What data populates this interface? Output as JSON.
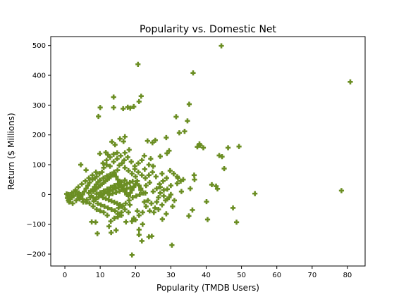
{
  "chart_data": {
    "type": "scatter",
    "title": "Popularity vs. Domestic Net",
    "xlabel": "Popularity (TMDB Users)",
    "ylabel": "Return ($ Millions)",
    "xlim": [
      -4,
      85
    ],
    "ylim": [
      -240,
      530
    ],
    "xticks": [
      0,
      10,
      20,
      30,
      40,
      50,
      60,
      70,
      80
    ],
    "yticks": [
      -200,
      -100,
      0,
      100,
      200,
      300,
      400,
      500
    ],
    "grid": false,
    "marker": "plus",
    "series": [
      {
        "color": "#6b8e23",
        "points": [
          [
            44.3,
            499
          ],
          [
            20.7,
            437
          ],
          [
            36.3,
            408
          ],
          [
            80.8,
            378
          ],
          [
            13.8,
            327
          ],
          [
            21.6,
            330
          ],
          [
            21.0,
            312
          ],
          [
            35.2,
            303
          ],
          [
            10.0,
            292
          ],
          [
            13.8,
            292
          ],
          [
            17.8,
            293
          ],
          [
            18.5,
            290
          ],
          [
            19.5,
            295
          ],
          [
            16.5,
            288
          ],
          [
            9.5,
            262
          ],
          [
            31.5,
            261
          ],
          [
            34.7,
            247
          ],
          [
            33.9,
            212
          ],
          [
            32.4,
            207
          ],
          [
            28.7,
            191
          ],
          [
            25.6,
            182
          ],
          [
            24.8,
            174
          ],
          [
            23.4,
            180
          ],
          [
            17.0,
            194
          ],
          [
            15.6,
            187
          ],
          [
            16.6,
            178
          ],
          [
            13.3,
            177
          ],
          [
            14.2,
            167
          ],
          [
            38.3,
            165
          ],
          [
            39.2,
            157
          ],
          [
            37.5,
            160
          ],
          [
            38.1,
            170
          ],
          [
            49.3,
            161
          ],
          [
            46.2,
            157
          ],
          [
            43.7,
            131
          ],
          [
            44.5,
            127
          ],
          [
            45.1,
            87
          ],
          [
            36.6,
            65
          ],
          [
            36.7,
            50
          ],
          [
            29.5,
            147
          ],
          [
            28.9,
            138
          ],
          [
            27.0,
            128
          ],
          [
            18.2,
            150
          ],
          [
            17.0,
            140
          ],
          [
            11.6,
            141
          ],
          [
            12.2,
            133
          ],
          [
            9.9,
            137
          ],
          [
            4.5,
            100
          ],
          [
            6.0,
            82
          ],
          [
            22.6,
            85
          ],
          [
            25.0,
            95
          ],
          [
            27.5,
            70
          ],
          [
            32.0,
            55
          ],
          [
            33.5,
            50
          ],
          [
            41.6,
            33
          ],
          [
            42.8,
            28
          ],
          [
            53.8,
            3
          ],
          [
            78.3,
            13
          ],
          [
            43.2,
            19
          ],
          [
            47.6,
            -45
          ],
          [
            40.1,
            -24
          ],
          [
            40.4,
            -84
          ],
          [
            48.6,
            -93
          ],
          [
            35.1,
            -72
          ],
          [
            36.1,
            -52
          ],
          [
            30.3,
            -170
          ],
          [
            19.0,
            -203
          ],
          [
            21.8,
            -156
          ],
          [
            21.0,
            -135
          ],
          [
            23.8,
            -142
          ],
          [
            24.6,
            -140
          ],
          [
            27.6,
            -83
          ],
          [
            28.7,
            -65
          ],
          [
            30.5,
            -40
          ],
          [
            26.0,
            -25
          ],
          [
            25.2,
            -60
          ],
          [
            22.0,
            -100
          ],
          [
            21.0,
            -118
          ],
          [
            17.3,
            -92
          ],
          [
            14.5,
            -120
          ],
          [
            13.1,
            -128
          ],
          [
            12.5,
            -107
          ],
          [
            9.2,
            -131
          ],
          [
            8.7,
            -93
          ],
          [
            7.6,
            -92
          ],
          [
            15.0,
            -75
          ],
          [
            16.0,
            -70
          ],
          [
            19.5,
            -80
          ],
          [
            20.5,
            -55
          ],
          [
            18.4,
            -35
          ],
          [
            26.5,
            -10
          ],
          [
            28.0,
            -5
          ],
          [
            31.0,
            -20
          ],
          [
            33.0,
            10
          ],
          [
            35.5,
            20
          ],
          [
            31.8,
            37
          ],
          [
            30.0,
            30
          ],
          [
            29.0,
            18
          ],
          [
            27.0,
            25
          ],
          [
            24.0,
            40
          ],
          [
            23.0,
            30
          ],
          [
            21.5,
            15
          ],
          [
            22.8,
            5
          ],
          [
            20.0,
            60
          ],
          [
            19.0,
            70
          ],
          [
            18.0,
            80
          ],
          [
            17.0,
            90
          ],
          [
            16.2,
            105
          ],
          [
            15.4,
            98
          ],
          [
            14.8,
            120
          ],
          [
            13.8,
            110
          ],
          [
            12.8,
            95
          ],
          [
            11.8,
            100
          ],
          [
            11.0,
            90
          ],
          [
            10.5,
            75
          ],
          [
            9.8,
            70
          ],
          [
            9.0,
            60
          ],
          [
            8.5,
            55
          ],
          [
            7.8,
            50
          ],
          [
            7.0,
            40
          ],
          [
            6.5,
            30
          ],
          [
            6.0,
            20
          ],
          [
            5.5,
            10
          ],
          [
            5.0,
            0
          ],
          [
            4.5,
            -5
          ],
          [
            4.0,
            5
          ],
          [
            3.5,
            0
          ],
          [
            3.0,
            10
          ],
          [
            2.5,
            -5
          ],
          [
            2.0,
            -10
          ],
          [
            1.5,
            -15
          ],
          [
            1.0,
            -20
          ],
          [
            0.8,
            -5
          ],
          [
            0.5,
            2
          ],
          [
            0.7,
            -12
          ],
          [
            1.2,
            -25
          ],
          [
            1.8,
            -8
          ],
          [
            2.2,
            -30
          ],
          [
            3.2,
            -20
          ],
          [
            4.2,
            -15
          ],
          [
            5.2,
            -25
          ],
          [
            6.2,
            -18
          ],
          [
            7.2,
            -10
          ],
          [
            8.2,
            -22
          ],
          [
            9.3,
            -30
          ],
          [
            10.2,
            -35
          ],
          [
            11.2,
            -40
          ],
          [
            12.2,
            -45
          ],
          [
            13.2,
            -50
          ],
          [
            14.2,
            -55
          ],
          [
            15.2,
            -45
          ],
          [
            16.2,
            -40
          ],
          [
            17.2,
            -30
          ],
          [
            18.2,
            -20
          ],
          [
            19.2,
            -10
          ],
          [
            20.2,
            -5
          ],
          [
            21.2,
            0
          ],
          [
            22.2,
            5
          ],
          [
            8.0,
            10
          ],
          [
            8.5,
            15
          ],
          [
            9.0,
            20
          ],
          [
            9.5,
            25
          ],
          [
            10.0,
            30
          ],
          [
            10.5,
            35
          ],
          [
            11.0,
            40
          ],
          [
            11.5,
            45
          ],
          [
            12.0,
            50
          ],
          [
            12.5,
            55
          ],
          [
            13.0,
            60
          ],
          [
            13.5,
            65
          ],
          [
            14.0,
            70
          ],
          [
            14.5,
            60
          ],
          [
            15.0,
            50
          ],
          [
            15.5,
            40
          ],
          [
            16.0,
            30
          ],
          [
            16.5,
            20
          ],
          [
            17.0,
            10
          ],
          [
            17.5,
            0
          ],
          [
            18.0,
            -5
          ],
          [
            18.5,
            5
          ],
          [
            19.0,
            15
          ],
          [
            19.5,
            25
          ],
          [
            20.0,
            35
          ],
          [
            20.5,
            45
          ],
          [
            21.0,
            30
          ],
          [
            21.5,
            20
          ],
          [
            7.5,
            -5
          ],
          [
            8.0,
            -10
          ],
          [
            8.8,
            -15
          ],
          [
            9.6,
            -8
          ],
          [
            10.4,
            -2
          ],
          [
            11.2,
            4
          ],
          [
            12.0,
            8
          ],
          [
            12.8,
            12
          ],
          [
            13.6,
            16
          ],
          [
            14.4,
            20
          ],
          [
            15.2,
            24
          ],
          [
            16.0,
            28
          ],
          [
            16.8,
            32
          ],
          [
            17.6,
            36
          ],
          [
            18.4,
            40
          ],
          [
            19.2,
            44
          ],
          [
            10.8,
            -10
          ],
          [
            11.6,
            -14
          ],
          [
            12.4,
            -18
          ],
          [
            13.2,
            -22
          ],
          [
            14.0,
            -26
          ],
          [
            14.8,
            -30
          ],
          [
            15.6,
            -34
          ],
          [
            16.4,
            -38
          ],
          [
            9.0,
            2
          ],
          [
            10.0,
            6
          ],
          [
            11.0,
            12
          ],
          [
            12.0,
            18
          ],
          [
            13.0,
            24
          ],
          [
            14.0,
            30
          ],
          [
            15.0,
            36
          ],
          [
            16.0,
            42
          ],
          [
            17.0,
            48
          ],
          [
            12.5,
            -2
          ],
          [
            13.5,
            3
          ],
          [
            14.5,
            7
          ],
          [
            15.5,
            11
          ],
          [
            16.5,
            15
          ],
          [
            17.5,
            19
          ],
          [
            18.5,
            23
          ],
          [
            19.5,
            27
          ],
          [
            6.8,
            5
          ],
          [
            7.3,
            12
          ],
          [
            7.9,
            18
          ],
          [
            8.4,
            26
          ],
          [
            8.9,
            34
          ],
          [
            9.4,
            42
          ],
          [
            9.9,
            48
          ],
          [
            10.9,
            55
          ],
          [
            11.9,
            62
          ],
          [
            12.9,
            68
          ],
          [
            13.9,
            75
          ],
          [
            14.9,
            82
          ],
          [
            24.5,
            -30
          ],
          [
            25.5,
            -45
          ],
          [
            26.5,
            -50
          ],
          [
            27.5,
            -35
          ],
          [
            28.5,
            -20
          ],
          [
            29.5,
            -10
          ],
          [
            25.0,
            10
          ],
          [
            26.0,
            20
          ],
          [
            27.0,
            5
          ],
          [
            28.0,
            15
          ],
          [
            29.0,
            -15
          ],
          [
            30.0,
            0
          ],
          [
            23.5,
            -20
          ],
          [
            22.5,
            -25
          ],
          [
            23.0,
            -40
          ],
          [
            24.0,
            -55
          ],
          [
            22.0,
            -60
          ],
          [
            21.0,
            -70
          ],
          [
            20.0,
            -85
          ],
          [
            19.0,
            -90
          ],
          [
            18.0,
            -60
          ],
          [
            17.0,
            -50
          ],
          [
            16.0,
            -60
          ],
          [
            15.0,
            -65
          ],
          [
            14.0,
            -80
          ],
          [
            13.0,
            -90
          ],
          [
            12.0,
            -70
          ],
          [
            11.0,
            -60
          ],
          [
            10.0,
            -55
          ],
          [
            9.0,
            -50
          ],
          [
            8.0,
            -40
          ],
          [
            7.0,
            -30
          ],
          [
            6.0,
            -25
          ],
          [
            5.0,
            -15
          ],
          [
            4.0,
            -10
          ],
          [
            3.0,
            15
          ],
          [
            2.0,
            5
          ],
          [
            1.0,
            0
          ],
          [
            3.8,
            25
          ],
          [
            4.8,
            35
          ],
          [
            5.8,
            45
          ],
          [
            6.8,
            55
          ],
          [
            7.8,
            65
          ],
          [
            8.8,
            75
          ],
          [
            23.8,
            100
          ],
          [
            24.3,
            120
          ],
          [
            22.5,
            130
          ],
          [
            21.8,
            115
          ],
          [
            20.8,
            105
          ],
          [
            19.8,
            95
          ],
          [
            18.8,
            110
          ],
          [
            17.8,
            125
          ],
          [
            16.8,
            115
          ],
          [
            15.8,
            130
          ],
          [
            14.8,
            140
          ],
          [
            13.8,
            135
          ],
          [
            12.8,
            125
          ],
          [
            11.8,
            115
          ],
          [
            10.8,
            105
          ],
          [
            29.8,
            80
          ],
          [
            30.8,
            70
          ],
          [
            31.8,
            60
          ],
          [
            32.8,
            45
          ],
          [
            28.8,
            55
          ],
          [
            27.8,
            45
          ],
          [
            26.8,
            35
          ],
          [
            25.8,
            60
          ],
          [
            24.8,
            75
          ],
          [
            23.8,
            65
          ],
          [
            22.8,
            55
          ],
          [
            21.8,
            65
          ],
          [
            20.8,
            75
          ],
          [
            19.8,
            85
          ]
        ]
      }
    ]
  }
}
